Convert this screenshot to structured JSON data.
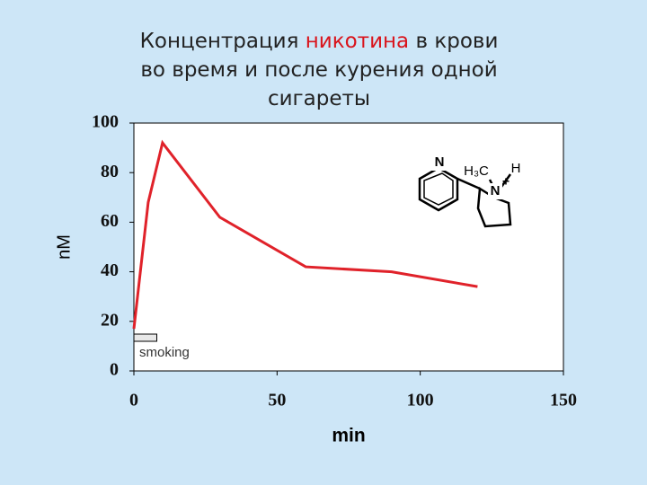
{
  "chart_data": {
    "type": "line",
    "title_parts": [
      "Концентрация",
      "никотина",
      "в крови",
      "во время и после курения одной",
      "сигареты"
    ],
    "title_highlight_color": "#d9141c",
    "x": [
      0,
      5,
      10,
      30,
      60,
      90,
      120
    ],
    "values": [
      17,
      68,
      92,
      62,
      42,
      40,
      34
    ],
    "color": "#e0222a",
    "xlim": [
      0,
      150
    ],
    "xticks": [
      0,
      50,
      100,
      150
    ],
    "ylim": [
      0,
      100
    ],
    "yticks": [
      0,
      20,
      40,
      60,
      80,
      100
    ],
    "x_label": "min",
    "y_label": "nM",
    "annotation": {
      "label": "smoking",
      "x_range": [
        0,
        8
      ]
    },
    "structure_labels": [
      "N",
      "H₃C",
      "H",
      "N",
      "+"
    ]
  }
}
